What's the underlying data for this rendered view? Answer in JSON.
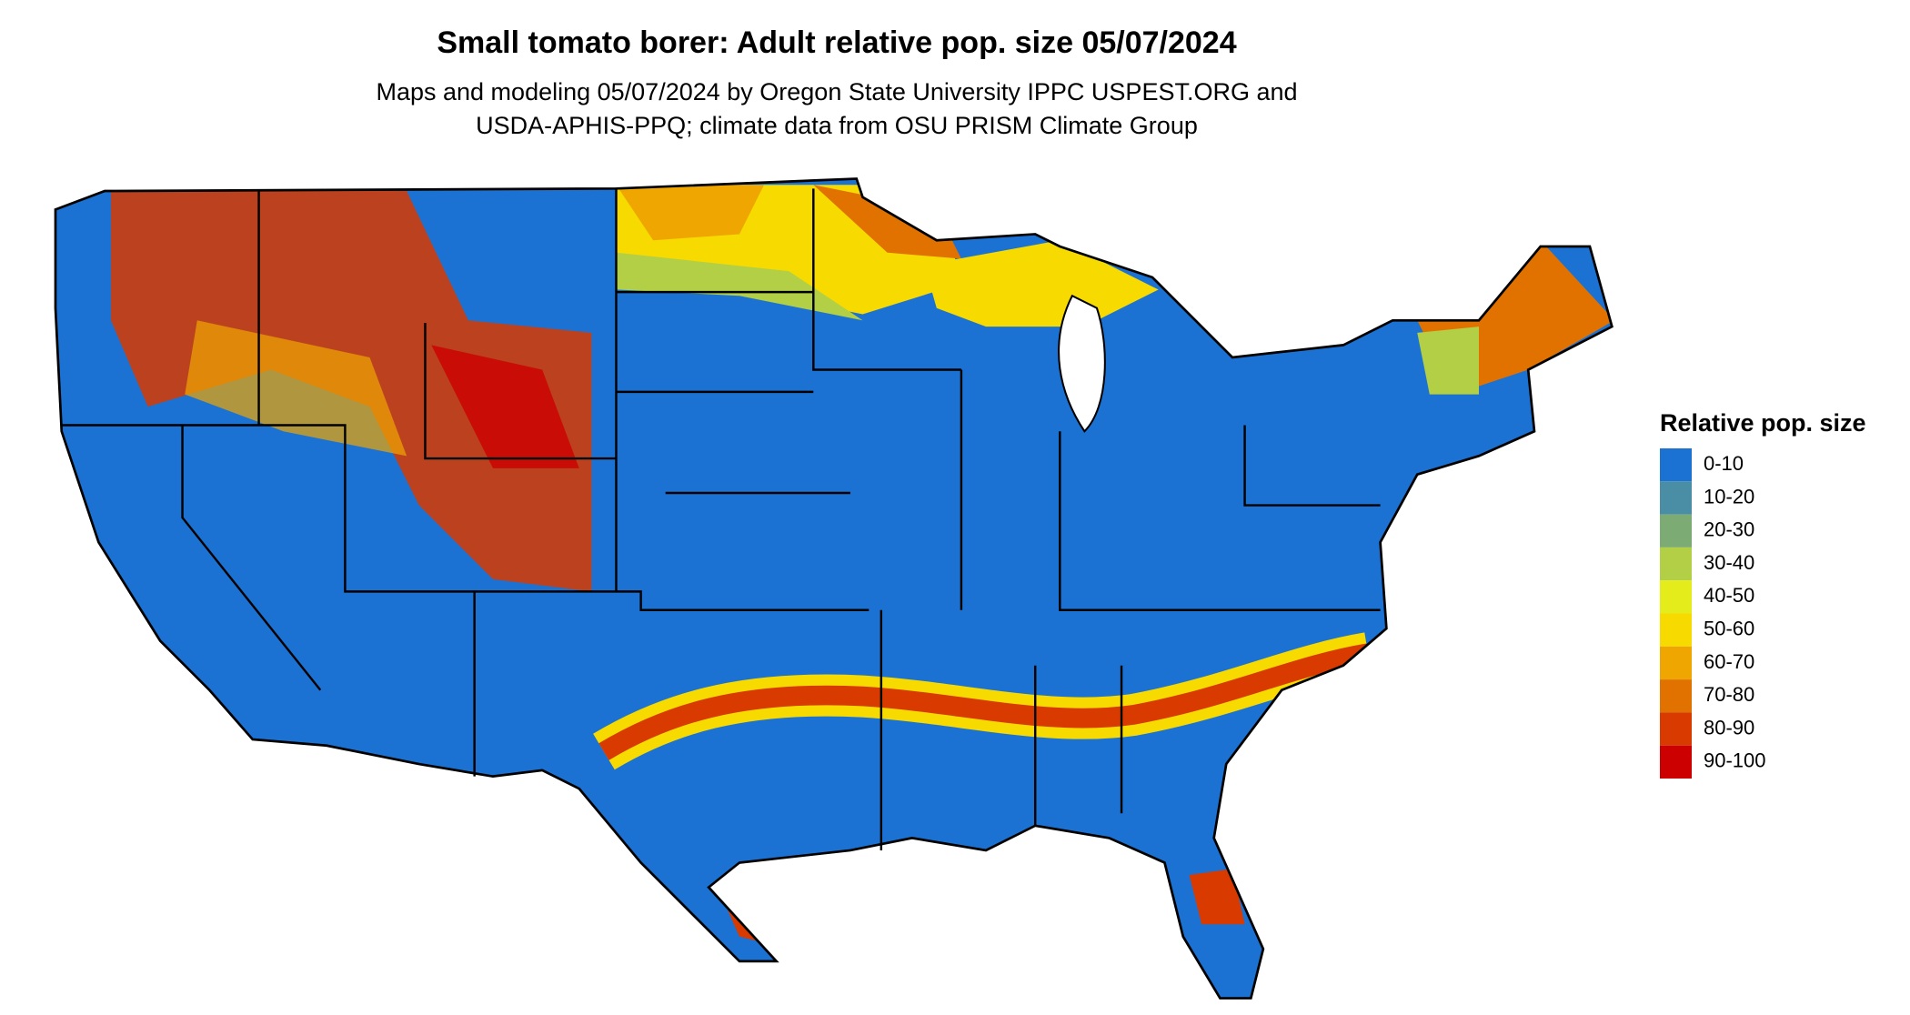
{
  "title": "Small tomato borer: Adult relative pop. size 05/07/2024",
  "subtitle": [
    "Maps and modeling 05/07/2024 by Oregon State University IPPC USPEST.ORG and",
    "USDA-APHIS-PPQ; climate data from OSU PRISM Climate Group"
  ],
  "legend": {
    "title": "Relative pop. size",
    "items": [
      {
        "label": "0-10",
        "color": "#1c72d2"
      },
      {
        "label": "10-20",
        "color": "#4a8ea6"
      },
      {
        "label": "20-30",
        "color": "#7cab74"
      },
      {
        "label": "30-40",
        "color": "#b2cf45"
      },
      {
        "label": "40-50",
        "color": "#e4ec1c"
      },
      {
        "label": "50-60",
        "color": "#f6da00"
      },
      {
        "label": "60-70",
        "color": "#efa600"
      },
      {
        "label": "70-80",
        "color": "#e27200"
      },
      {
        "label": "80-90",
        "color": "#d83a00"
      },
      {
        "label": "90-100",
        "color": "#cc0000"
      }
    ]
  }
}
